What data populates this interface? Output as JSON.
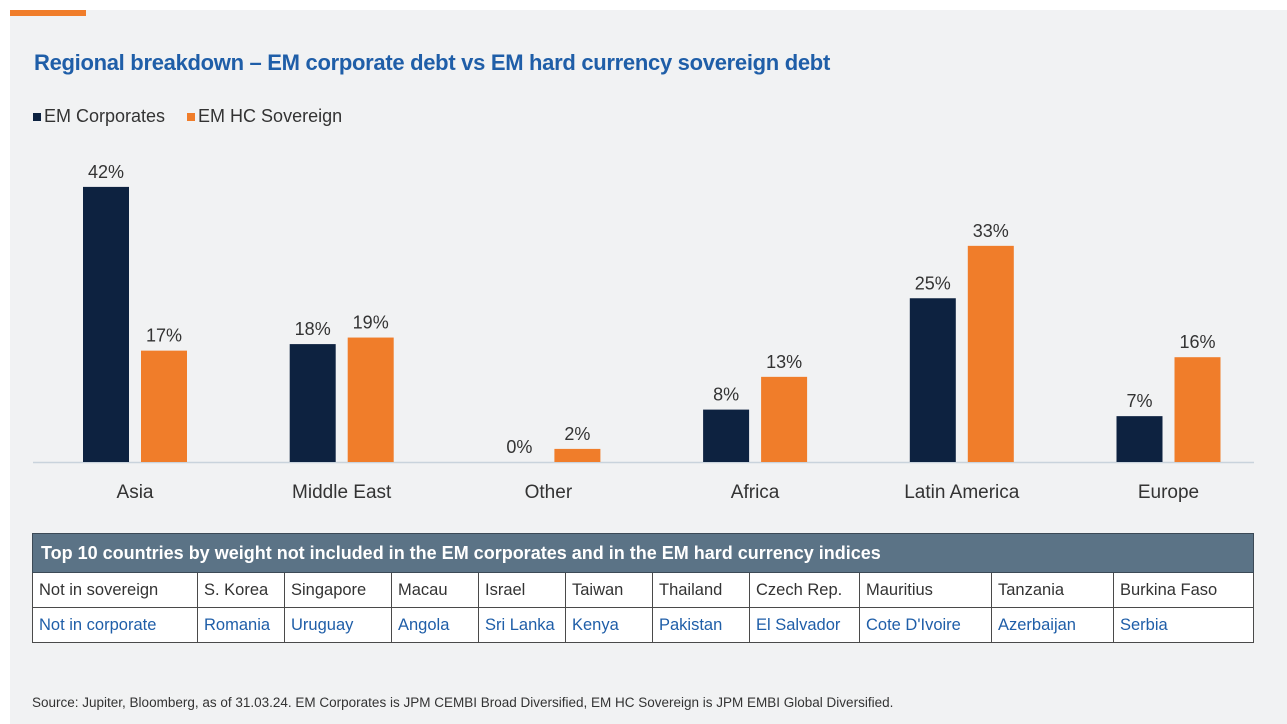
{
  "title": "Regional breakdown – EM corporate debt vs EM hard currency sovereign debt",
  "legend": [
    {
      "label": "EM Corporates",
      "color": "#0d2240"
    },
    {
      "label": "EM HC Sovereign",
      "color": "#f07d2a"
    }
  ],
  "chart_data": {
    "type": "bar",
    "categories": [
      "Asia",
      "Middle East",
      "Other",
      "Africa",
      "Latin America",
      "Europe"
    ],
    "series": [
      {
        "name": "EM Corporates",
        "values": [
          42,
          18,
          0,
          8,
          25,
          7
        ],
        "labels": [
          "42%",
          "18%",
          "0%",
          "8%",
          "25%",
          "7%"
        ],
        "color": "#0d2240"
      },
      {
        "name": "EM HC Sovereign",
        "values": [
          17,
          19,
          2,
          13,
          33,
          16
        ],
        "labels": [
          "17%",
          "19%",
          "2%",
          "13%",
          "33%",
          "16%"
        ],
        "color": "#f07d2a"
      }
    ],
    "unit": "%",
    "grid": false,
    "legend_position": "top-left"
  },
  "table": {
    "header": "Top 10 countries by weight not included in the EM corporates and in the EM hard currency indices",
    "rows": [
      [
        "Not in sovereign",
        "S. Korea",
        "Singapore",
        "Macau",
        "Israel",
        "Taiwan",
        "Thailand",
        "Czech Rep.",
        "Mauritius",
        "Tanzania",
        "Burkina Faso"
      ],
      [
        "Not in corporate",
        "Romania",
        "Uruguay",
        "Angola",
        "Sri Lanka",
        "Kenya",
        "Pakistan",
        "El Salvador",
        "Cote D'Ivoire",
        "Azerbaijan",
        "Serbia"
      ]
    ]
  },
  "source": "Source: Jupiter, Bloomberg, as of 31.03.24. EM Corporates is JPM CEMBI Broad Diversified, EM HC Sovereign is JPM EMBI Global Diversified."
}
